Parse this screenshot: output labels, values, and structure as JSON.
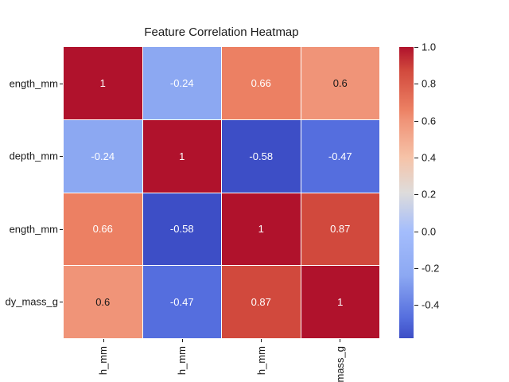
{
  "title": "Feature Correlation Heatmap",
  "colors": {
    "background": "#ffffff",
    "text": "#1a1a1a",
    "grid_line": "#ffffff"
  },
  "chart_data": {
    "type": "heatmap",
    "colormap": "coolwarm",
    "title": "Feature Correlation Heatmap",
    "vmin": -0.58,
    "vmax": 1.0,
    "row_labels_visible": [
      "ength_mm",
      "depth_mm",
      "ength_mm",
      "dy_mass_g"
    ],
    "col_labels_visible": [
      "h_mm",
      "h_mm",
      "h_mm",
      "mass_g"
    ],
    "matrix": [
      [
        1,
        -0.24,
        0.66,
        0.6
      ],
      [
        -0.24,
        1,
        -0.58,
        -0.47
      ],
      [
        0.66,
        -0.58,
        1,
        0.87
      ],
      [
        0.6,
        -0.47,
        0.87,
        1
      ]
    ],
    "cell_labels": [
      [
        "1",
        "-0.24",
        "0.66",
        "0.6"
      ],
      [
        "-0.24",
        "1",
        "-0.58",
        "-0.47"
      ],
      [
        "0.66",
        "-0.58",
        "1",
        "0.87"
      ],
      [
        "0.6",
        "-0.47",
        "0.87",
        "1"
      ]
    ],
    "cell_colors": [
      [
        "#b0122c",
        "#8ca8f2",
        "#ec8063",
        "#f09478"
      ],
      [
        "#8ca8f2",
        "#b0122c",
        "#3d4ec6",
        "#556ede"
      ],
      [
        "#ec8063",
        "#3d4ec6",
        "#b0122c",
        "#d1493d"
      ],
      [
        "#f09478",
        "#556ede",
        "#d1493d",
        "#b0122c"
      ]
    ],
    "cell_text_colors": [
      [
        "#ffffff",
        "#ffffff",
        "#ffffff",
        "#1a1a1a"
      ],
      [
        "#ffffff",
        "#ffffff",
        "#ffffff",
        "#ffffff"
      ],
      [
        "#ffffff",
        "#ffffff",
        "#ffffff",
        "#ffffff"
      ],
      [
        "#1a1a1a",
        "#ffffff",
        "#ffffff",
        "#ffffff"
      ]
    ],
    "colorbar": {
      "tick_labels": [
        "1.0",
        "0.8",
        "0.6",
        "0.4",
        "0.2",
        "0.0",
        "-0.2",
        "-0.4"
      ],
      "tick_values": [
        1.0,
        0.8,
        0.6,
        0.4,
        0.2,
        0.0,
        -0.2,
        -0.4
      ],
      "gradient_stops": [
        {
          "color": "#b0122c",
          "pos": 0
        },
        {
          "color": "#d1493d",
          "pos": 8
        },
        {
          "color": "#ec8063",
          "pos": 21.5
        },
        {
          "color": "#f09478",
          "pos": 25.3
        },
        {
          "color": "#f6c3a8",
          "pos": 38
        },
        {
          "color": "#dedcdb",
          "pos": 50
        },
        {
          "color": "#a4bdfc",
          "pos": 63.3
        },
        {
          "color": "#8ca8f2",
          "pos": 78.5
        },
        {
          "color": "#556ede",
          "pos": 93
        },
        {
          "color": "#3d4ec6",
          "pos": 100
        }
      ]
    }
  }
}
